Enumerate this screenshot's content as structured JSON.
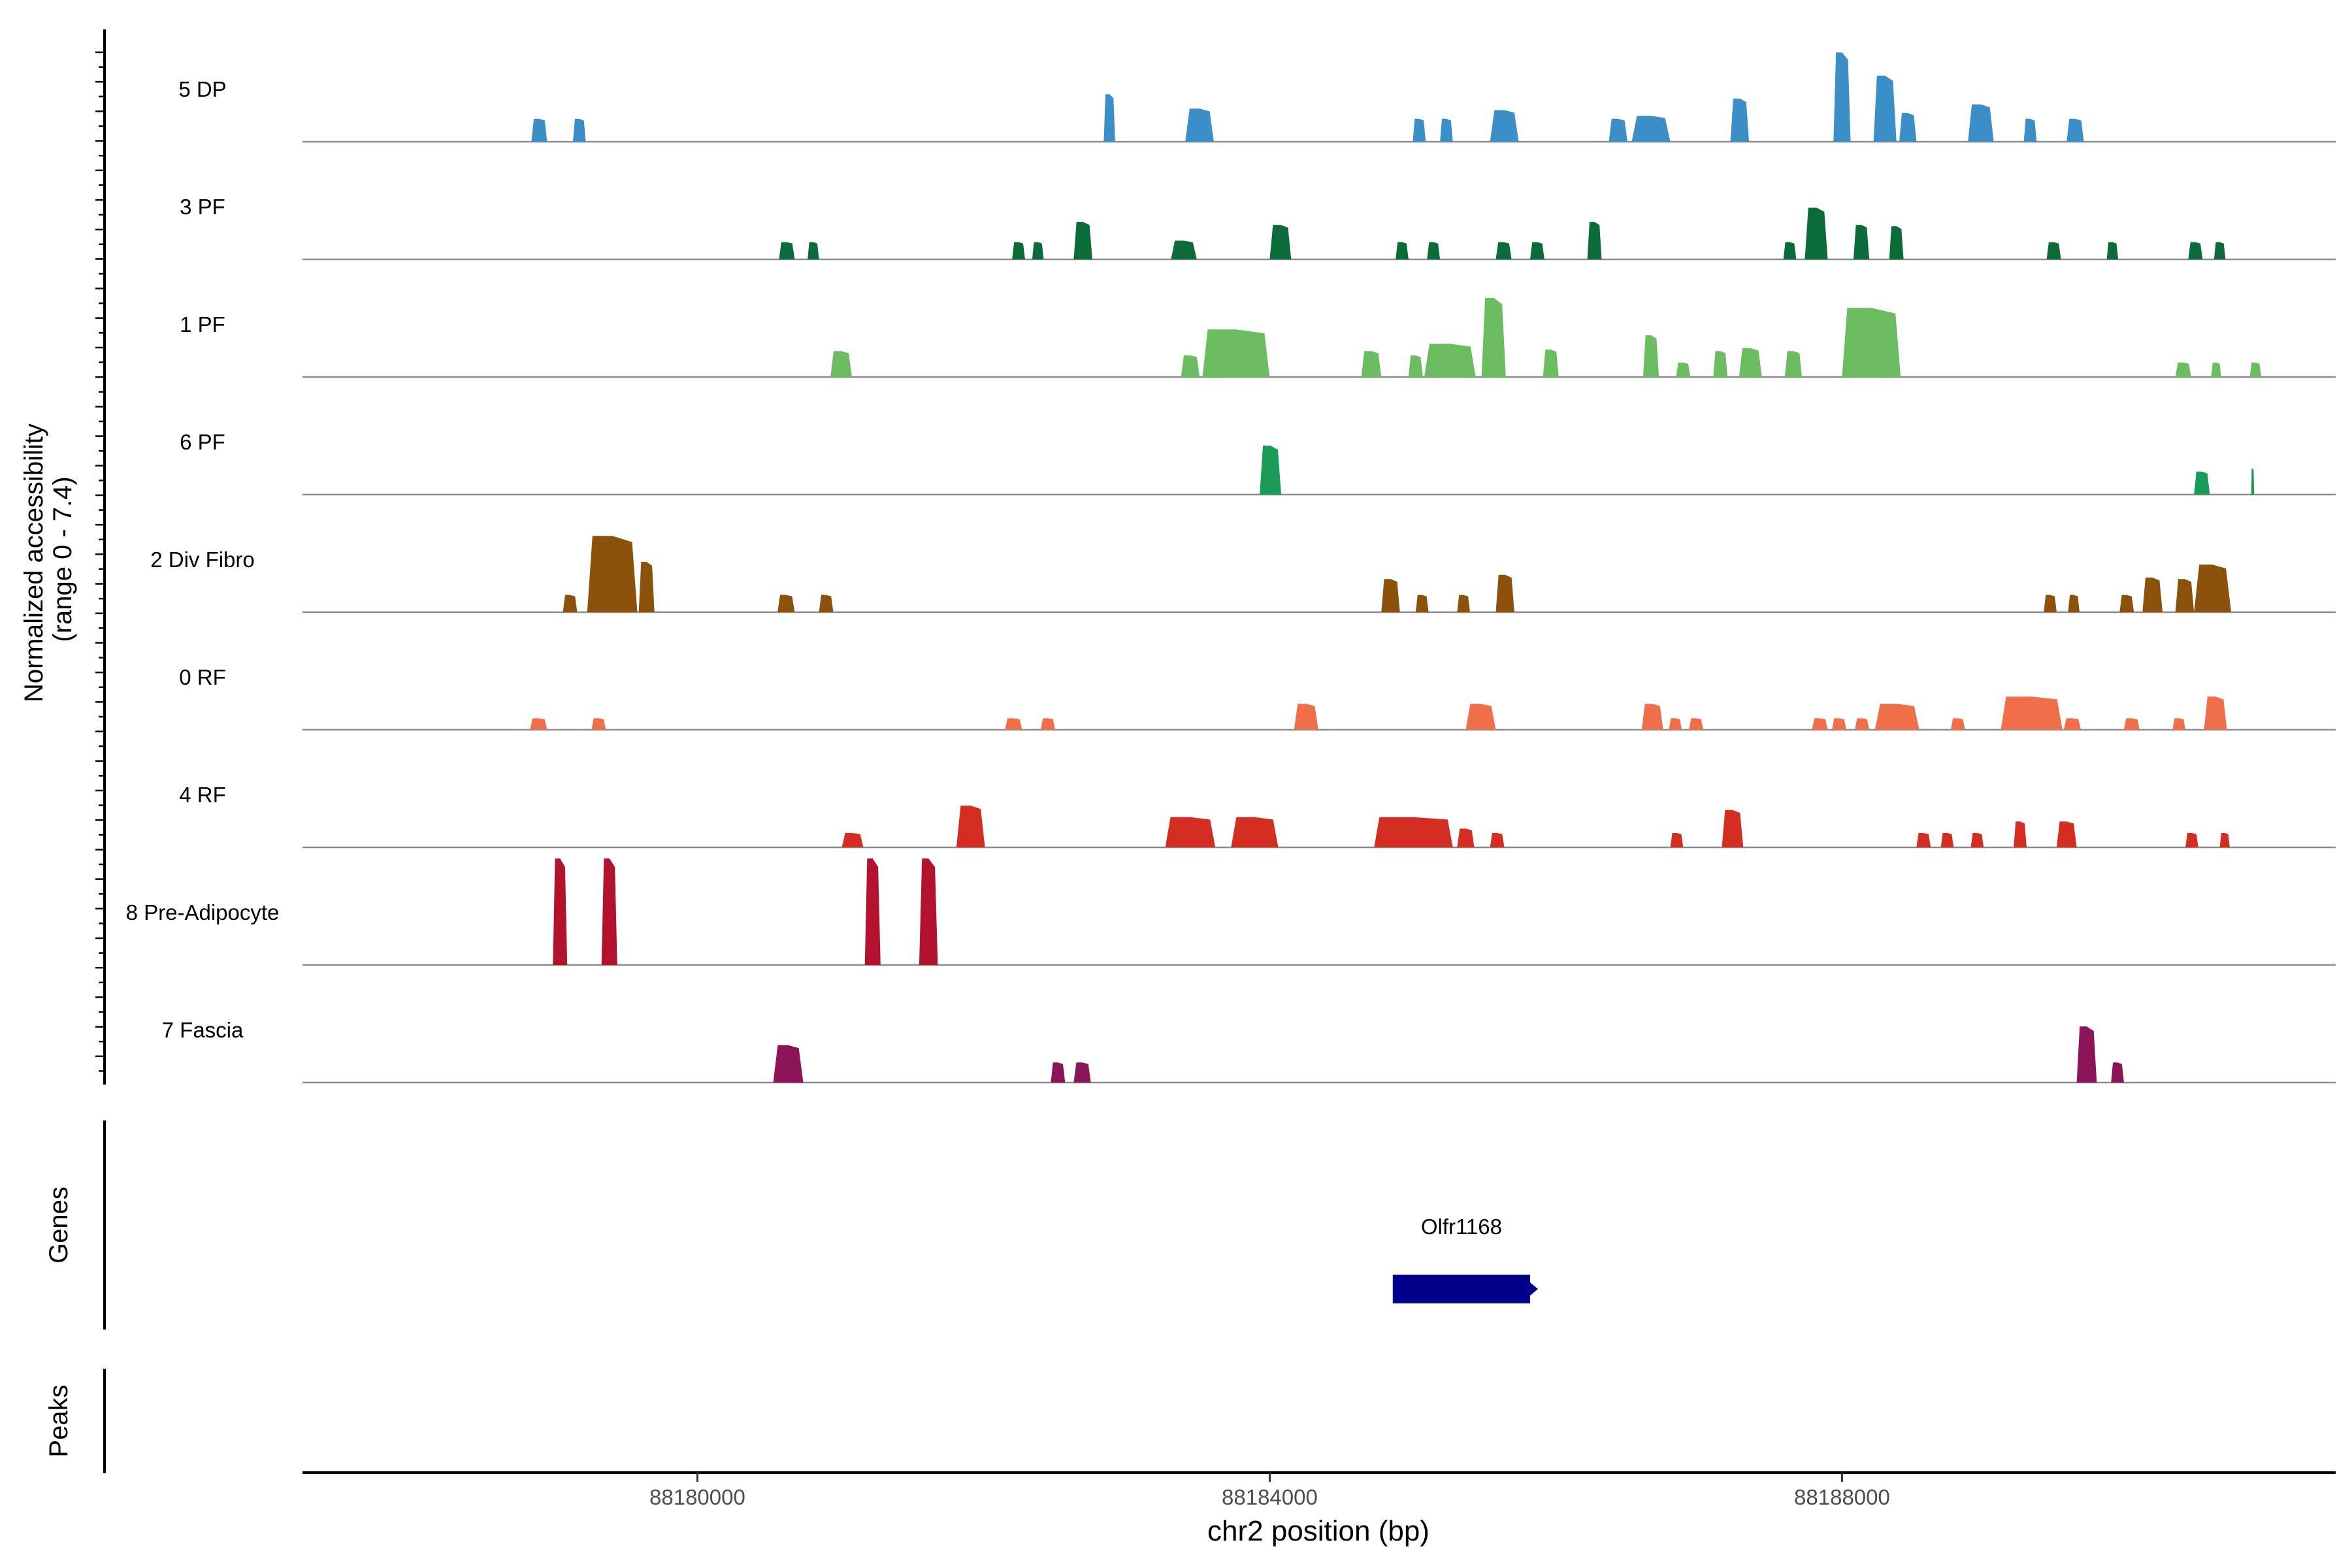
{
  "chart_data": {
    "type": "area",
    "title": "",
    "ylabel_line1": "Normalized accessibility",
    "ylabel_line2": "(range 0 - 7.4)",
    "ylim": [
      0,
      7.4
    ],
    "xlabel": "chr2 position (bp)",
    "xlim": [
      88177240,
      88191450
    ],
    "x_ticks": [
      {
        "value": 88180000,
        "label": "88180000"
      },
      {
        "value": 88184000,
        "label": "88184000"
      },
      {
        "value": 88188000,
        "label": "88188000"
      }
    ],
    "series": [
      {
        "name": "5 DP",
        "color": "#3b8fc6",
        "peaks": [
          [
            88178840,
            88178950,
            1.6
          ],
          [
            88179130,
            88179220,
            1.6
          ],
          [
            88182840,
            88182920,
            3.3
          ],
          [
            88183410,
            88183610,
            2.3
          ],
          [
            88185000,
            88185090,
            1.6
          ],
          [
            88185190,
            88185280,
            1.6
          ],
          [
            88185540,
            88185740,
            2.2
          ],
          [
            88186370,
            88186500,
            1.6
          ],
          [
            88186530,
            88186800,
            1.8
          ],
          [
            88187220,
            88187350,
            3.0
          ],
          [
            88187940,
            88188060,
            6.2
          ],
          [
            88188220,
            88188380,
            4.6
          ],
          [
            88188400,
            88188520,
            2.0
          ],
          [
            88188880,
            88189060,
            2.6
          ],
          [
            88189270,
            88189360,
            1.6
          ],
          [
            88189570,
            88189690,
            1.6
          ]
        ]
      },
      {
        "name": "3 PF",
        "color": "#0b6b39",
        "peaks": [
          [
            88180570,
            88180680,
            1.2
          ],
          [
            88180770,
            88180850,
            1.2
          ],
          [
            88182200,
            88182290,
            1.2
          ],
          [
            88182340,
            88182420,
            1.2
          ],
          [
            88182630,
            88182760,
            2.6
          ],
          [
            88183310,
            88183490,
            1.3
          ],
          [
            88184000,
            88184150,
            2.4
          ],
          [
            88184880,
            88184970,
            1.2
          ],
          [
            88185100,
            88185190,
            1.2
          ],
          [
            88185580,
            88185690,
            1.2
          ],
          [
            88185820,
            88185920,
            1.2
          ],
          [
            88186220,
            88186320,
            2.6
          ],
          [
            88187590,
            88187680,
            1.2
          ],
          [
            88187740,
            88187900,
            3.6
          ],
          [
            88188080,
            88188190,
            2.4
          ],
          [
            88188330,
            88188430,
            2.3
          ],
          [
            88189430,
            88189530,
            1.2
          ],
          [
            88189850,
            88189930,
            1.2
          ],
          [
            88190420,
            88190520,
            1.2
          ],
          [
            88190600,
            88190680,
            1.2
          ]
        ]
      },
      {
        "name": "1 PF",
        "color": "#6cbd62",
        "peaks": [
          [
            88180930,
            88181080,
            1.8
          ],
          [
            88183380,
            88183510,
            1.5
          ],
          [
            88183530,
            88184000,
            3.3
          ],
          [
            88184640,
            88184780,
            1.8
          ],
          [
            88184970,
            88185070,
            1.5
          ],
          [
            88185080,
            88185440,
            2.3
          ],
          [
            88185480,
            88185650,
            5.5
          ],
          [
            88185910,
            88186020,
            1.9
          ],
          [
            88186610,
            88186720,
            2.9
          ],
          [
            88186840,
            88186940,
            1.0
          ],
          [
            88187100,
            88187200,
            1.8
          ],
          [
            88187280,
            88187440,
            2.0
          ],
          [
            88187600,
            88187720,
            1.8
          ],
          [
            88188000,
            88188410,
            4.8
          ],
          [
            88190330,
            88190440,
            1.0
          ],
          [
            88190580,
            88190650,
            1.0
          ],
          [
            88190850,
            88190930,
            1.0
          ]
        ]
      },
      {
        "name": "6 PF",
        "color": "#1a9b57",
        "peaks": [
          [
            88183930,
            88184080,
            3.4
          ],
          [
            88190460,
            88190570,
            1.6
          ],
          [
            88190860,
            88190880,
            1.8
          ]
        ]
      },
      {
        "name": "2 Div Fibro",
        "color": "#8c510a",
        "peaks": [
          [
            88179060,
            88179160,
            1.2
          ],
          [
            88179230,
            88179580,
            5.3
          ],
          [
            88179590,
            88179700,
            3.5
          ],
          [
            88180560,
            88180680,
            1.2
          ],
          [
            88180850,
            88180950,
            1.2
          ],
          [
            88184780,
            88184910,
            2.3
          ],
          [
            88185020,
            88185110,
            1.2
          ],
          [
            88185310,
            88185400,
            1.2
          ],
          [
            88185580,
            88185710,
            2.6
          ],
          [
            88189410,
            88189500,
            1.2
          ],
          [
            88189580,
            88189660,
            1.2
          ],
          [
            88189940,
            88190040,
            1.2
          ],
          [
            88190100,
            88190240,
            2.4
          ],
          [
            88190330,
            88190460,
            2.3
          ],
          [
            88190460,
            88190720,
            3.3
          ]
        ]
      },
      {
        "name": "0 RF",
        "color": "#ef6f4a",
        "peaks": [
          [
            88178830,
            88178950,
            0.8
          ],
          [
            88179260,
            88179360,
            0.8
          ],
          [
            88182150,
            88182270,
            0.8
          ],
          [
            88182400,
            88182500,
            0.8
          ],
          [
            88184170,
            88184340,
            1.8
          ],
          [
            88185370,
            88185580,
            1.8
          ],
          [
            88186600,
            88186750,
            1.8
          ],
          [
            88186790,
            88186880,
            0.8
          ],
          [
            88186930,
            88187030,
            0.8
          ],
          [
            88187790,
            88187900,
            0.8
          ],
          [
            88187930,
            88188030,
            0.8
          ],
          [
            88188090,
            88188190,
            0.8
          ],
          [
            88188230,
            88188540,
            1.8
          ],
          [
            88188760,
            88188860,
            0.8
          ],
          [
            88189110,
            88189540,
            2.3
          ],
          [
            88189550,
            88189670,
            0.8
          ],
          [
            88189970,
            88190080,
            0.8
          ],
          [
            88190310,
            88190400,
            0.8
          ],
          [
            88190530,
            88190690,
            2.3
          ]
        ]
      },
      {
        "name": "4 RF",
        "color": "#d42e23",
        "peaks": [
          [
            88181010,
            88181160,
            1.0
          ],
          [
            88181810,
            88182010,
            2.9
          ],
          [
            88183270,
            88183620,
            2.1
          ],
          [
            88183730,
            88184060,
            2.1
          ],
          [
            88184730,
            88185280,
            2.1
          ],
          [
            88185310,
            88185430,
            1.3
          ],
          [
            88185540,
            88185640,
            1.0
          ],
          [
            88186800,
            88186890,
            1.0
          ],
          [
            88187160,
            88187310,
            2.6
          ],
          [
            88188520,
            88188620,
            1.0
          ],
          [
            88188690,
            88188780,
            1.0
          ],
          [
            88188900,
            88188990,
            1.0
          ],
          [
            88189200,
            88189290,
            1.8
          ],
          [
            88189500,
            88189640,
            1.8
          ],
          [
            88190400,
            88190490,
            1.0
          ],
          [
            88190640,
            88190710,
            1.0
          ]
        ]
      },
      {
        "name": "8 Pre-Adipocyte",
        "color": "#b3122e",
        "peaks": [
          [
            88178990,
            88179090,
            7.4
          ],
          [
            88179330,
            88179440,
            7.4
          ],
          [
            88181170,
            88181280,
            7.4
          ],
          [
            88181550,
            88181680,
            7.4
          ]
        ]
      },
      {
        "name": "7 Fascia",
        "color": "#8c1458",
        "peaks": [
          [
            88180530,
            88180740,
            2.6
          ],
          [
            88182470,
            88182570,
            1.4
          ],
          [
            88182630,
            88182750,
            1.4
          ],
          [
            88189640,
            88189780,
            3.9
          ],
          [
            88189880,
            88189970,
            1.4
          ]
        ]
      }
    ],
    "genes_track_label": "Genes",
    "genes": [
      {
        "name": "Olfr1168",
        "start": 88184860,
        "end": 88185820,
        "strand": "+",
        "color": "#00008b"
      }
    ],
    "peaks_track_label": "Peaks"
  }
}
